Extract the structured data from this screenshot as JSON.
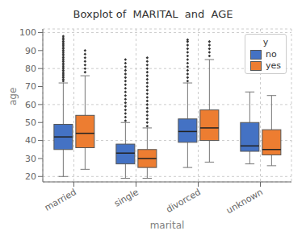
{
  "chart_data": {
    "type": "box",
    "title": "Boxplot of  MARITAL  and  AGE",
    "xlabel": "marital",
    "ylabel": "age",
    "categories": [
      "married",
      "single",
      "divorced",
      "unknown"
    ],
    "legend_title": "y",
    "series": [
      {
        "name": "no",
        "color": "#4472C4",
        "values": [
          {
            "whislo": 20,
            "q1": 35,
            "med": 42,
            "q3": 49,
            "whishi": 72,
            "fliers": [
              73,
              74,
              75,
              76,
              77,
              78,
              79,
              80,
              81,
              82,
              83,
              84,
              85,
              86,
              87,
              88,
              89,
              90,
              91,
              92,
              93,
              94,
              95,
              96,
              97,
              98
            ]
          },
          {
            "whislo": 19,
            "q1": 27,
            "med": 33,
            "q3": 38,
            "whishi": 50,
            "fliers": [
              51,
              53,
              55,
              57,
              59,
              61,
              63,
              65,
              67,
              69,
              71,
              73,
              75,
              77,
              79,
              81,
              83,
              85
            ]
          },
          {
            "whislo": 25,
            "q1": 39,
            "med": 45,
            "q3": 52,
            "whishi": 72,
            "fliers": [
              73,
              75,
              77,
              79,
              81,
              83,
              85,
              87,
              89,
              91,
              93,
              95,
              96
            ]
          },
          {
            "whislo": 27,
            "q1": 34,
            "med": 37,
            "q3": 50,
            "whishi": 67,
            "fliers": []
          }
        ]
      },
      {
        "name": "yes",
        "color": "#ED7D31",
        "values": [
          {
            "whislo": 24,
            "q1": 36,
            "med": 44,
            "q3": 54,
            "whishi": 76,
            "fliers": [
              78,
              80,
              82,
              84,
              86,
              88,
              90
            ]
          },
          {
            "whislo": 19,
            "q1": 25,
            "med": 30,
            "q3": 35,
            "whishi": 47,
            "fliers": [
              48,
              50,
              52,
              54,
              56,
              58,
              60,
              62,
              64,
              66,
              68,
              70,
              72,
              74,
              76,
              78,
              80,
              82,
              84,
              86
            ]
          },
          {
            "whislo": 28,
            "q1": 40,
            "med": 47,
            "q3": 57,
            "whishi": 85,
            "fliers": [
              87,
              89,
              91,
              93,
              95
            ]
          },
          {
            "whislo": 26,
            "q1": 32,
            "med": 35,
            "q3": 46,
            "whishi": 65,
            "fliers": []
          }
        ]
      }
    ],
    "ylim": [
      17,
      102
    ],
    "yticks": [
      20,
      30,
      40,
      50,
      60,
      70,
      80,
      90,
      100
    ],
    "grid": true,
    "legend": "upper right"
  }
}
